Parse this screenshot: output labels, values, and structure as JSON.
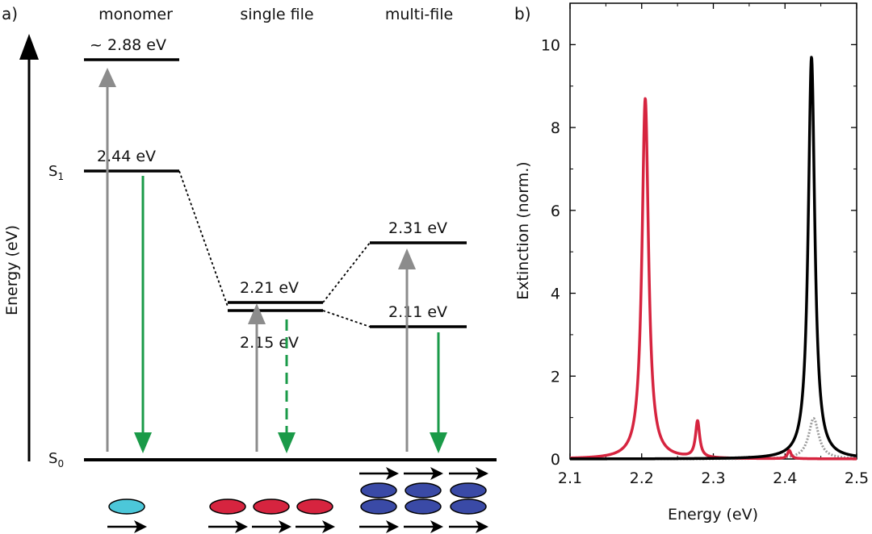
{
  "figure": {
    "panel_a_label": "a)",
    "panel_b_label": "b)",
    "energy_axis_label": "Energy (eV)",
    "state_s1": {
      "main": "S",
      "sub": "1"
    },
    "state_s0": {
      "main": "S",
      "sub": "0"
    },
    "columns": {
      "monomer": "monomer",
      "single_file": "single file",
      "multi_file": "multi-file"
    },
    "levels": {
      "monomer_upper": "~ 2.88 eV",
      "monomer_s1": "2.44 eV",
      "single_upper": "2.21 eV",
      "single_lower": "2.15 eV",
      "multi_upper": "2.31 eV",
      "multi_lower": "2.11 eV"
    },
    "colors": {
      "absorption_arrow": "#8c8c8c",
      "emission_arrow": "#1a9a48",
      "monomer_molecule": "#4cc7d9",
      "single_file_molecule": "#d6243f",
      "multi_file_molecule": "#3a4aa6",
      "level_line": "#000000"
    }
  },
  "chart_data": {
    "type": "line",
    "title": "",
    "xlabel": "Energy (eV)",
    "ylabel": "Extinction (norm.)",
    "xlim": [
      2.1,
      2.5
    ],
    "ylim": [
      0,
      11
    ],
    "xticks": [
      "2.1",
      "2.2",
      "2.3",
      "2.4",
      "2.5"
    ],
    "yticks": [
      "0",
      "2",
      "4",
      "6",
      "8",
      "10"
    ],
    "series": [
      {
        "name": "single file",
        "color": "#d6243f",
        "style": "solid",
        "peaks": [
          {
            "center": 2.205,
            "height": 8.7,
            "width": 0.0055
          },
          {
            "center": 2.278,
            "height": 0.88,
            "width": 0.0035
          },
          {
            "center": 2.406,
            "height": 0.2,
            "width": 0.003
          }
        ]
      },
      {
        "name": "multi-file",
        "color": "#000000",
        "style": "solid",
        "peaks": [
          {
            "center": 2.437,
            "height": 9.7,
            "width": 0.0055
          }
        ]
      },
      {
        "name": "monomer",
        "color": "#9a9a9a",
        "style": "dotted",
        "peaks": [
          {
            "center": 2.44,
            "height": 0.98,
            "width": 0.0085
          }
        ]
      }
    ]
  }
}
